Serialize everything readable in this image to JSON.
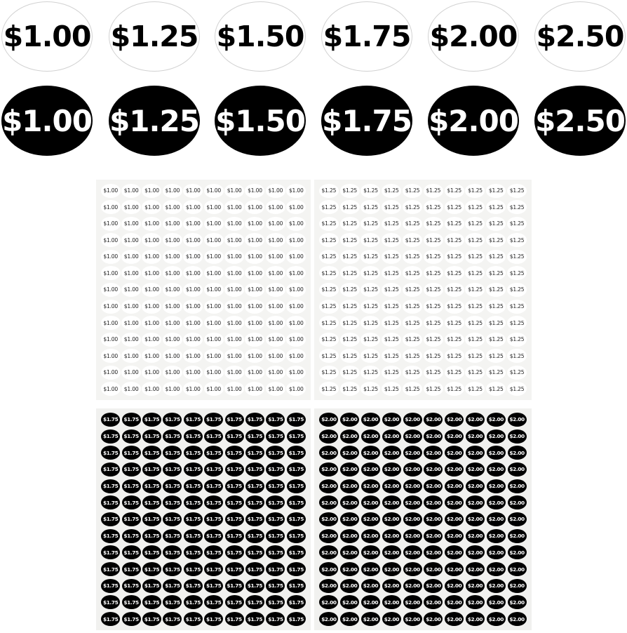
{
  "top_row": {
    "style": "white",
    "labels": [
      "$1.00",
      "$1.25",
      "$1.50",
      "$1.75",
      "$2.00",
      "$2.50"
    ]
  },
  "second_row": {
    "style": "black",
    "labels": [
      "$1.00",
      "$1.25",
      "$1.50",
      "$1.75",
      "$2.00",
      "$2.50"
    ]
  },
  "sheets": [
    {
      "label": "$1.00",
      "style": "white",
      "rows": 13,
      "cols": 10
    },
    {
      "label": "$1.25",
      "style": "white",
      "rows": 13,
      "cols": 10
    },
    {
      "label": "$1.75",
      "style": "black",
      "rows": 13,
      "cols": 10
    },
    {
      "label": "$2.00",
      "style": "black",
      "rows": 13,
      "cols": 10
    }
  ],
  "colors": {
    "sticker_black": "#000000",
    "sticker_white": "#ffffff",
    "sheet_backing": "#f3f3f1"
  }
}
